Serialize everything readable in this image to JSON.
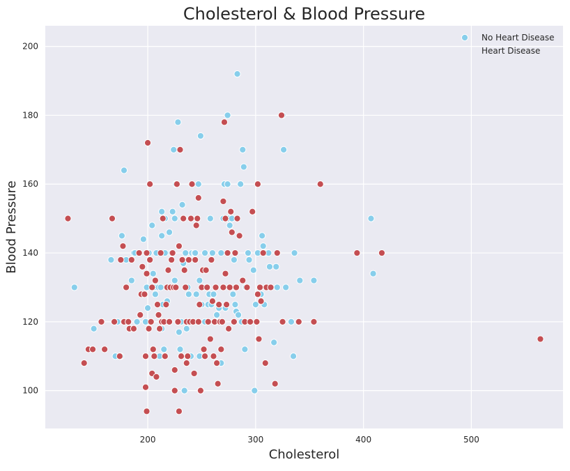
{
  "chart_data": {
    "type": "scatter",
    "title": "Cholesterol & Blood Pressure",
    "xlabel": "Cholesterol",
    "ylabel": "Blood Pressure",
    "xlim": [
      105,
      585
    ],
    "ylim": [
      89,
      206
    ],
    "xticks": [
      200,
      300,
      400,
      500
    ],
    "yticks": [
      100,
      120,
      140,
      160,
      180,
      200
    ],
    "grid": true,
    "legend_position": "top-right",
    "background_color": "#eaeaf2",
    "series": [
      {
        "name": "No Heart Disease",
        "color": "#87ceeb",
        "points": [
          [
            132,
            130
          ],
          [
            150,
            118
          ],
          [
            166,
            138
          ],
          [
            170,
            110
          ],
          [
            172,
            120
          ],
          [
            175,
            110
          ],
          [
            176,
            145
          ],
          [
            178,
            164
          ],
          [
            180,
            138
          ],
          [
            185,
            132
          ],
          [
            187,
            140
          ],
          [
            188,
            140
          ],
          [
            190,
            120
          ],
          [
            192,
            140
          ],
          [
            196,
            144
          ],
          [
            198,
            110
          ],
          [
            198,
            120
          ],
          [
            199,
            130
          ],
          [
            200,
            124
          ],
          [
            201,
            140
          ],
          [
            204,
            148
          ],
          [
            205,
            134
          ],
          [
            206,
            130
          ],
          [
            207,
            128
          ],
          [
            208,
            140
          ],
          [
            210,
            130
          ],
          [
            211,
            110
          ],
          [
            212,
            130
          ],
          [
            213,
            118
          ],
          [
            213,
            152
          ],
          [
            213,
            145
          ],
          [
            214,
            125
          ],
          [
            215,
            112
          ],
          [
            216,
            150
          ],
          [
            216,
            140
          ],
          [
            218,
            126
          ],
          [
            220,
            146
          ],
          [
            221,
            130
          ],
          [
            222,
            140
          ],
          [
            223,
            152
          ],
          [
            224,
            170
          ],
          [
            225,
            150
          ],
          [
            225,
            132
          ],
          [
            226,
            160
          ],
          [
            228,
            178
          ],
          [
            228,
            120
          ],
          [
            229,
            117
          ],
          [
            230,
            112
          ],
          [
            231,
            120
          ],
          [
            232,
            154
          ],
          [
            233,
            137
          ],
          [
            234,
            100
          ],
          [
            235,
            140
          ],
          [
            236,
            118
          ],
          [
            237,
            130
          ],
          [
            238,
            128
          ],
          [
            240,
            110
          ],
          [
            241,
            140
          ],
          [
            243,
            140
          ],
          [
            244,
            140
          ],
          [
            245,
            128
          ],
          [
            246,
            150
          ],
          [
            247,
            160
          ],
          [
            248,
            110
          ],
          [
            248,
            132
          ],
          [
            249,
            174
          ],
          [
            250,
            125
          ],
          [
            252,
            130
          ],
          [
            253,
            140
          ],
          [
            253,
            120
          ],
          [
            254,
            135
          ],
          [
            255,
            130
          ],
          [
            256,
            125
          ],
          [
            257,
            128
          ],
          [
            258,
            150
          ],
          [
            259,
            125
          ],
          [
            260,
            140
          ],
          [
            261,
            128
          ],
          [
            262,
            120
          ],
          [
            263,
            120
          ],
          [
            264,
            122
          ],
          [
            266,
            124
          ],
          [
            268,
            108
          ],
          [
            268,
            140
          ],
          [
            270,
            150
          ],
          [
            271,
            160
          ],
          [
            272,
            124
          ],
          [
            274,
            180
          ],
          [
            274,
            160
          ],
          [
            275,
            150
          ],
          [
            276,
            148
          ],
          [
            277,
            152
          ],
          [
            278,
            150
          ],
          [
            279,
            128
          ],
          [
            280,
            138
          ],
          [
            281,
            125
          ],
          [
            282,
            123
          ],
          [
            283,
            192
          ],
          [
            284,
            122
          ],
          [
            286,
            160
          ],
          [
            287,
            120
          ],
          [
            288,
            170
          ],
          [
            289,
            165
          ],
          [
            290,
            112
          ],
          [
            291,
            130
          ],
          [
            293,
            140
          ],
          [
            294,
            138
          ],
          [
            298,
            135
          ],
          [
            299,
            100
          ],
          [
            300,
            125
          ],
          [
            302,
            140
          ],
          [
            305,
            128
          ],
          [
            306,
            145
          ],
          [
            307,
            142
          ],
          [
            308,
            125
          ],
          [
            309,
            140
          ],
          [
            310,
            140
          ],
          [
            312,
            140
          ],
          [
            313,
            136
          ],
          [
            317,
            114
          ],
          [
            319,
            136
          ],
          [
            320,
            130
          ],
          [
            325,
            180
          ],
          [
            326,
            170
          ],
          [
            328,
            130
          ],
          [
            333,
            120
          ],
          [
            335,
            110
          ],
          [
            336,
            140
          ],
          [
            341,
            132
          ],
          [
            354,
            132
          ],
          [
            407,
            150
          ],
          [
            409,
            134
          ]
        ]
      },
      {
        "name": "Heart Disease",
        "color": "#c44e52",
        "points": [
          [
            126,
            150
          ],
          [
            141,
            108
          ],
          [
            145,
            112
          ],
          [
            149,
            112
          ],
          [
            157,
            120
          ],
          [
            160,
            112
          ],
          [
            167,
            150
          ],
          [
            169,
            120
          ],
          [
            174,
            110
          ],
          [
            175,
            138
          ],
          [
            177,
            142
          ],
          [
            178,
            120
          ],
          [
            180,
            130
          ],
          [
            182,
            120
          ],
          [
            183,
            118
          ],
          [
            185,
            138
          ],
          [
            187,
            118
          ],
          [
            192,
            140
          ],
          [
            193,
            122
          ],
          [
            194,
            128
          ],
          [
            195,
            136
          ],
          [
            197,
            128
          ],
          [
            198,
            101
          ],
          [
            198,
            110
          ],
          [
            199,
            94
          ],
          [
            199,
            140
          ],
          [
            199,
            134
          ],
          [
            200,
            172
          ],
          [
            201,
            118
          ],
          [
            202,
            160
          ],
          [
            202,
            138
          ],
          [
            203,
            120
          ],
          [
            204,
            130
          ],
          [
            204,
            105
          ],
          [
            205,
            112
          ],
          [
            206,
            110
          ],
          [
            207,
            132
          ],
          [
            208,
            104
          ],
          [
            209,
            125
          ],
          [
            210,
            122
          ],
          [
            211,
            118
          ],
          [
            212,
            140
          ],
          [
            213,
            120
          ],
          [
            214,
            150
          ],
          [
            215,
            120
          ],
          [
            216,
            110
          ],
          [
            217,
            125
          ],
          [
            218,
            130
          ],
          [
            219,
            135
          ],
          [
            220,
            120
          ],
          [
            221,
            130
          ],
          [
            222,
            138
          ],
          [
            223,
            140
          ],
          [
            224,
            130
          ],
          [
            225,
            100
          ],
          [
            225,
            106
          ],
          [
            226,
            130
          ],
          [
            227,
            160
          ],
          [
            228,
            120
          ],
          [
            229,
            142
          ],
          [
            229,
            94
          ],
          [
            230,
            170
          ],
          [
            231,
            110
          ],
          [
            232,
            138
          ],
          [
            233,
            150
          ],
          [
            234,
            135
          ],
          [
            235,
            130
          ],
          [
            236,
            120
          ],
          [
            236,
            108
          ],
          [
            237,
            110
          ],
          [
            238,
            138
          ],
          [
            239,
            120
          ],
          [
            240,
            150
          ],
          [
            241,
            160
          ],
          [
            242,
            120
          ],
          [
            243,
            105
          ],
          [
            244,
            138
          ],
          [
            245,
            148
          ],
          [
            246,
            150
          ],
          [
            247,
            120
          ],
          [
            247,
            156
          ],
          [
            248,
            125
          ],
          [
            249,
            100
          ],
          [
            250,
            130
          ],
          [
            251,
            135
          ],
          [
            252,
            112
          ],
          [
            253,
            110
          ],
          [
            254,
            135
          ],
          [
            255,
            130
          ],
          [
            256,
            120
          ],
          [
            258,
            115
          ],
          [
            259,
            138
          ],
          [
            260,
            126
          ],
          [
            261,
            110
          ],
          [
            262,
            120
          ],
          [
            263,
            130
          ],
          [
            264,
            108
          ],
          [
            265,
            102
          ],
          [
            266,
            125
          ],
          [
            267,
            120
          ],
          [
            268,
            112
          ],
          [
            269,
            120
          ],
          [
            270,
            130
          ],
          [
            270,
            155
          ],
          [
            271,
            178
          ],
          [
            272,
            150
          ],
          [
            272,
            134
          ],
          [
            273,
            125
          ],
          [
            274,
            140
          ],
          [
            275,
            118
          ],
          [
            276,
            130
          ],
          [
            277,
            152
          ],
          [
            278,
            146
          ],
          [
            280,
            120
          ],
          [
            281,
            140
          ],
          [
            282,
            130
          ],
          [
            283,
            150
          ],
          [
            285,
            145
          ],
          [
            288,
            132
          ],
          [
            290,
            120
          ],
          [
            292,
            130
          ],
          [
            295,
            120
          ],
          [
            297,
            152
          ],
          [
            301,
            120
          ],
          [
            302,
            160
          ],
          [
            302,
            128
          ],
          [
            303,
            115
          ],
          [
            304,
            130
          ],
          [
            305,
            126
          ],
          [
            307,
            140
          ],
          [
            309,
            108
          ],
          [
            310,
            130
          ],
          [
            314,
            130
          ],
          [
            318,
            102
          ],
          [
            320,
            140
          ],
          [
            324,
            180
          ],
          [
            325,
            120
          ],
          [
            340,
            120
          ],
          [
            354,
            120
          ],
          [
            360,
            160
          ],
          [
            394,
            140
          ],
          [
            417,
            140
          ],
          [
            564,
            115
          ]
        ]
      }
    ]
  }
}
